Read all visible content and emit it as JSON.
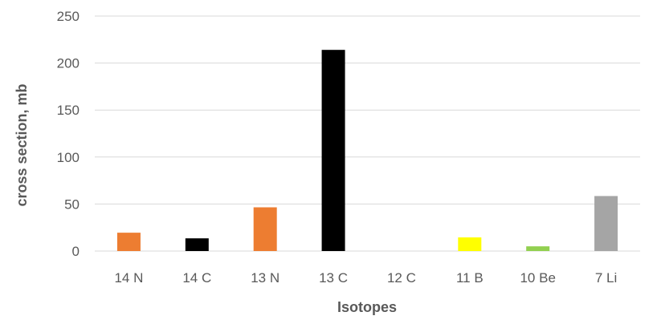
{
  "chart_data": {
    "type": "bar",
    "title": "",
    "xlabel": "Isotopes",
    "ylabel": "cross section, mb",
    "categories": [
      "14 N",
      "14 C",
      "13 N",
      "13 C",
      "12 C",
      "11 B",
      "10 Be",
      "7 Li"
    ],
    "values": [
      19.5,
      13.5,
      46.5,
      214,
      0,
      14.5,
      5,
      58.5
    ],
    "colors": [
      "#ED7D31",
      "#000000",
      "#ED7D31",
      "#000000",
      "#000000",
      "#FFFF00",
      "#92D050",
      "#A5A5A5"
    ],
    "ylim": [
      0,
      250
    ],
    "yticks": [
      0,
      50,
      100,
      150,
      200,
      250
    ],
    "grid": true,
    "legend": "none"
  }
}
